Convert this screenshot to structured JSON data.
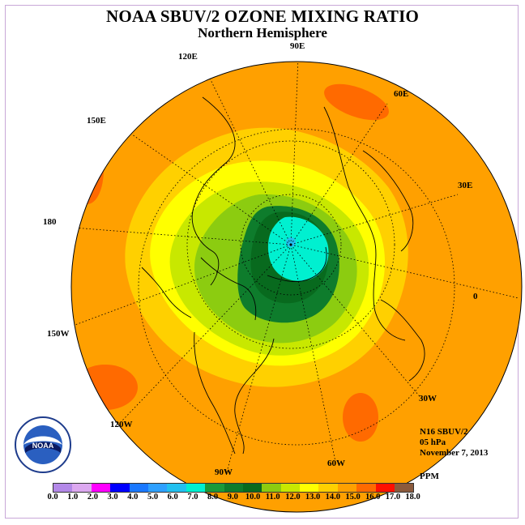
{
  "title": "NOAA SBUV/2 OZONE MIXING RATIO",
  "subtitle": "Northern Hemisphere",
  "longitude_labels": [
    {
      "text": "90E",
      "name": "lon-label-90e"
    },
    {
      "text": "60E",
      "name": "lon-label-60e"
    },
    {
      "text": "30E",
      "name": "lon-label-30e"
    },
    {
      "text": "0",
      "name": "lon-label-0"
    },
    {
      "text": "30W",
      "name": "lon-label-30w"
    },
    {
      "text": "60W",
      "name": "lon-label-60w"
    },
    {
      "text": "90W",
      "name": "lon-label-90w"
    },
    {
      "text": "120W",
      "name": "lon-label-120w"
    },
    {
      "text": "150W",
      "name": "lon-label-150w"
    },
    {
      "text": "180",
      "name": "lon-label-180"
    },
    {
      "text": "150E",
      "name": "lon-label-150e"
    },
    {
      "text": "120E",
      "name": "lon-label-120e"
    }
  ],
  "info": {
    "instrument": "N16 SBUV/2",
    "pressure": "05 hPa",
    "date": "November 7, 2013",
    "units": "PPM"
  },
  "logo_text": "NOAA",
  "colorbar": {
    "colors": [
      "#b388e8",
      "#dca8f0",
      "#ff00ff",
      "#0000ff",
      "#1a78ff",
      "#2ea0ff",
      "#22c0f0",
      "#00f0d0",
      "#1a9a3a",
      "#0e7c2c",
      "#086a1e",
      "#8ccc10",
      "#c8e800",
      "#ffff00",
      "#ffd000",
      "#ffa000",
      "#ff6a00",
      "#ff1000",
      "#8b5a3c"
    ],
    "ticks": [
      "0.0",
      "1.0",
      "2.0",
      "3.0",
      "4.0",
      "5.0",
      "6.0",
      "7.0",
      "8.0",
      "9.0",
      "10.0",
      "11.0",
      "12.0",
      "13.0",
      "14.0",
      "15.0",
      "16.0",
      "17.0",
      "18.0"
    ]
  }
}
